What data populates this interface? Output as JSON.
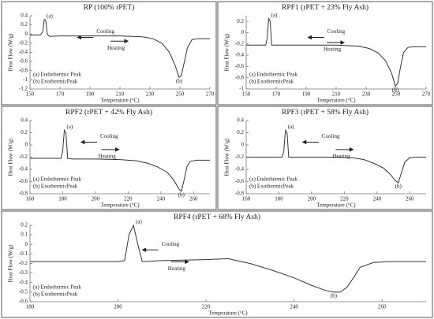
{
  "chart_data": [
    {
      "type": "line",
      "title": "RP (100% rPET)",
      "x_label": "Temperature (°C)",
      "y_label": "Heat Flow (W/g)",
      "xlim": [
        150,
        270
      ],
      "xticks": [
        150,
        170,
        190,
        210,
        230,
        250,
        270
      ],
      "ylim": [
        -1.2,
        0.4
      ],
      "yticks": [
        0.4,
        0.2,
        0,
        -0.2,
        -0.4,
        -0.6,
        -0.8,
        -1,
        -1.2
      ],
      "x": [
        150,
        157,
        158.5,
        159.5,
        160.5,
        161.5,
        163,
        170,
        190,
        210,
        225,
        232,
        238,
        243,
        247,
        249.5,
        251,
        253,
        255,
        258,
        262,
        270
      ],
      "series": [
        {
          "color": "#333333",
          "values": [
            -0.02,
            -0.02,
            0.05,
            0.32,
            0.3,
            0.0,
            -0.05,
            -0.04,
            -0.04,
            -0.04,
            -0.06,
            -0.1,
            -0.2,
            -0.4,
            -0.7,
            -0.95,
            -0.9,
            -0.6,
            -0.3,
            -0.12,
            -0.1,
            -0.1
          ]
        }
      ],
      "annotations": {
        "peak_a": "(a)",
        "peak_b": "(b)",
        "cooling": "Cooling",
        "heating": "Heating",
        "legend": [
          "(a)  Endothermic Peak",
          "(b)  ExothermicPeak"
        ]
      }
    },
    {
      "type": "line",
      "title": "RPF1 (rPET + 23% Fly Ash)",
      "x_label": "Temperature (°C)",
      "y_label": "Heat Flow (W/g)",
      "xlim": [
        150,
        270
      ],
      "xticks": [
        150,
        170,
        190,
        210,
        230,
        250,
        270
      ],
      "ylim": [
        -1,
        0.3
      ],
      "yticks": [
        0.2,
        0,
        -0.2,
        -0.4,
        -0.6,
        -0.8,
        -1
      ],
      "x": [
        150,
        163,
        164,
        165,
        166,
        167,
        170,
        190,
        210,
        225,
        232,
        238,
        243,
        247,
        249.5,
        251,
        253,
        255,
        258,
        262,
        270
      ],
      "series": [
        {
          "color": "#333333",
          "values": [
            -0.22,
            -0.22,
            -0.1,
            0.25,
            0.2,
            -0.22,
            -0.22,
            -0.22,
            -0.22,
            -0.24,
            -0.28,
            -0.36,
            -0.5,
            -0.72,
            -0.95,
            -0.9,
            -0.6,
            -0.35,
            -0.26,
            -0.25,
            -0.25
          ]
        }
      ],
      "annotations": {
        "peak_a": "(a)",
        "peak_b": "(b)",
        "cooling": "Cooling",
        "heating": "Heating",
        "legend": [
          "(a)  Endothermic Peak",
          "(b)  ExothermicPeak"
        ]
      }
    },
    {
      "type": "line",
      "title": "RPF2 (rPET + 42% Fly Ash)",
      "x_label": "Temperature (°C)",
      "y_label": "Heat Flow (W/g)",
      "xlim": [
        160,
        270
      ],
      "xticks": [
        160,
        180,
        200,
        220,
        240,
        260
      ],
      "ylim": [
        -0.8,
        0.4
      ],
      "yticks": [
        0.4,
        0.2,
        0,
        -0.2,
        -0.4,
        -0.6,
        -0.8
      ],
      "x": [
        160,
        179,
        180,
        181,
        182,
        183,
        186,
        200,
        215,
        225,
        232,
        238,
        244,
        248,
        251,
        252.5,
        254,
        256,
        258,
        262,
        270
      ],
      "series": [
        {
          "color": "#333333",
          "values": [
            -0.22,
            -0.22,
            -0.1,
            0.24,
            0.2,
            -0.22,
            -0.23,
            -0.23,
            -0.24,
            -0.26,
            -0.3,
            -0.36,
            -0.45,
            -0.58,
            -0.72,
            -0.76,
            -0.6,
            -0.35,
            -0.27,
            -0.25,
            -0.25
          ]
        }
      ],
      "annotations": {
        "peak_a": "(a)",
        "peak_b": "(b)",
        "cooling": "Cooling",
        "heating": "Heating",
        "legend": [
          "(a)  Endothermic Peak",
          "(b)  ExothermicPeak"
        ]
      }
    },
    {
      "type": "line",
      "title": "RPF3 (rPET + 58% Fly Ash)",
      "x_label": "Temperature (°C)",
      "y_label": "Heat Flow (W/g)",
      "xlim": [
        160,
        270
      ],
      "xticks": [
        160,
        180,
        200,
        220,
        240,
        260
      ],
      "ylim": [
        -0.8,
        0.4
      ],
      "yticks": [
        0.4,
        0.2,
        0,
        -0.2,
        -0.4,
        -0.6,
        -0.8
      ],
      "x": [
        160,
        182,
        183,
        184,
        185,
        186,
        190,
        200,
        215,
        225,
        232,
        238,
        244,
        248,
        251,
        253,
        255,
        257,
        260,
        264,
        270
      ],
      "series": [
        {
          "color": "#333333",
          "values": [
            -0.2,
            -0.2,
            -0.1,
            0.24,
            0.2,
            -0.2,
            -0.2,
            -0.2,
            -0.2,
            -0.21,
            -0.24,
            -0.3,
            -0.38,
            -0.48,
            -0.58,
            -0.62,
            -0.45,
            -0.28,
            -0.21,
            -0.2,
            -0.2
          ]
        }
      ],
      "annotations": {
        "peak_a": "(a)",
        "peak_b": "(b)",
        "cooling": "Cooling",
        "heating": "Heating",
        "legend": [
          "(a)  Endothermic Peak",
          "(b)  ExothermicPeak"
        ]
      }
    },
    {
      "type": "line",
      "title": "RPF4 (rPET + 68% Fly Ash)",
      "x_label": "Temperature (°C)",
      "y_label": "Heat Flow (W/g)",
      "xlim": [
        180,
        270
      ],
      "xticks": [
        180,
        200,
        220,
        240,
        260
      ],
      "ylim": [
        -0.6,
        0.2
      ],
      "yticks": [
        0.2,
        0.1,
        0,
        -0.1,
        -0.2,
        -0.3,
        -0.4,
        -0.5,
        -0.6
      ],
      "x": [
        180,
        200,
        201.5,
        202.5,
        203.5,
        204.5,
        205.5,
        210,
        220,
        225,
        230,
        235,
        240,
        244,
        247,
        249,
        250.5,
        252,
        253.5,
        255,
        258,
        262,
        270
      ],
      "series": [
        {
          "color": "#333333",
          "values": [
            -0.18,
            -0.18,
            -0.17,
            0.1,
            0.2,
            0.0,
            -0.18,
            -0.17,
            -0.16,
            -0.15,
            -0.2,
            -0.27,
            -0.35,
            -0.43,
            -0.48,
            -0.5,
            -0.5,
            -0.45,
            -0.35,
            -0.24,
            -0.19,
            -0.18,
            -0.18
          ]
        }
      ],
      "annotations": {
        "peak_a": "(a)",
        "peak_b": "(b)",
        "cooling": "Cooling",
        "heating": "Heating",
        "legend": [
          "(a)  Endothermic Peak",
          "(b)  ExothermicPeak"
        ]
      }
    }
  ]
}
